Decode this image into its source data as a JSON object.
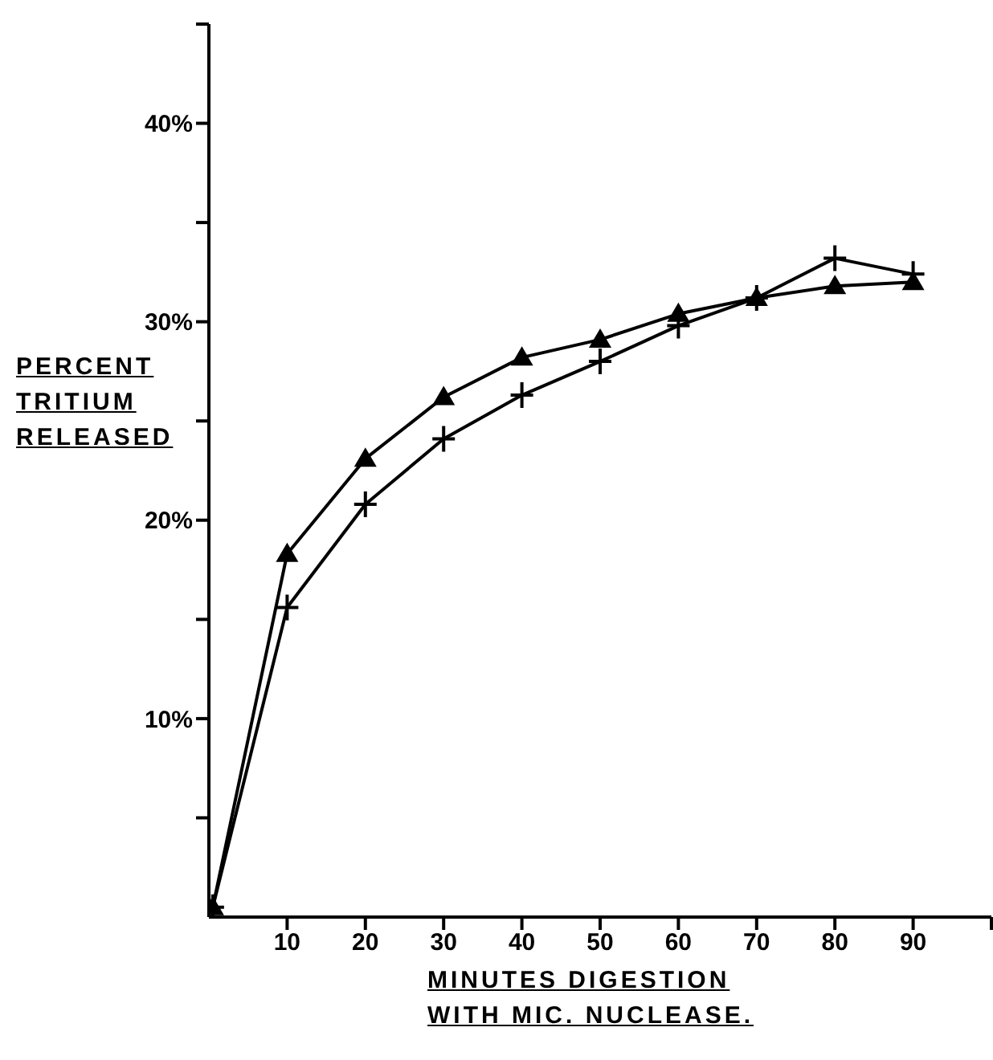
{
  "chart_data": {
    "type": "line",
    "xlabel": "MINUTES DIGESTION\nWITH MIC. NUCLEASE.",
    "ylabel": "PERCENT\nTRITIUM\nRELEASED",
    "xlim": [
      0,
      100
    ],
    "ylim": [
      0,
      45
    ],
    "xticks": [
      10,
      20,
      30,
      40,
      50,
      60,
      70,
      80,
      90,
      {
        "value": 100,
        "label": null
      }
    ],
    "yticks": [
      {
        "value": 5,
        "label": null
      },
      {
        "value": 10,
        "label": "10%"
      },
      {
        "value": 15,
        "label": null
      },
      {
        "value": 20,
        "label": "20%"
      },
      {
        "value": 25,
        "label": null
      },
      {
        "value": 30,
        "label": "30%"
      },
      {
        "value": 35,
        "label": null
      },
      {
        "value": 40,
        "label": "40%"
      },
      {
        "value": 45,
        "label": null
      }
    ],
    "x": [
      0.5,
      10,
      20,
      30,
      40,
      50,
      60,
      70,
      80,
      90
    ],
    "grid": false,
    "legend": false,
    "line_style": "solid",
    "series": [
      {
        "color": "#000000",
        "marker": "cross",
        "values": [
          0.5,
          15.6,
          20.8,
          24.1,
          26.3,
          28.0,
          29.8,
          31.2,
          33.2,
          32.4
        ]
      },
      {
        "color": "#000000",
        "marker": "triangle",
        "values": [
          0.5,
          18.3,
          23.1,
          26.2,
          28.2,
          29.1,
          30.4,
          31.2,
          31.8,
          32.0
        ]
      }
    ]
  }
}
